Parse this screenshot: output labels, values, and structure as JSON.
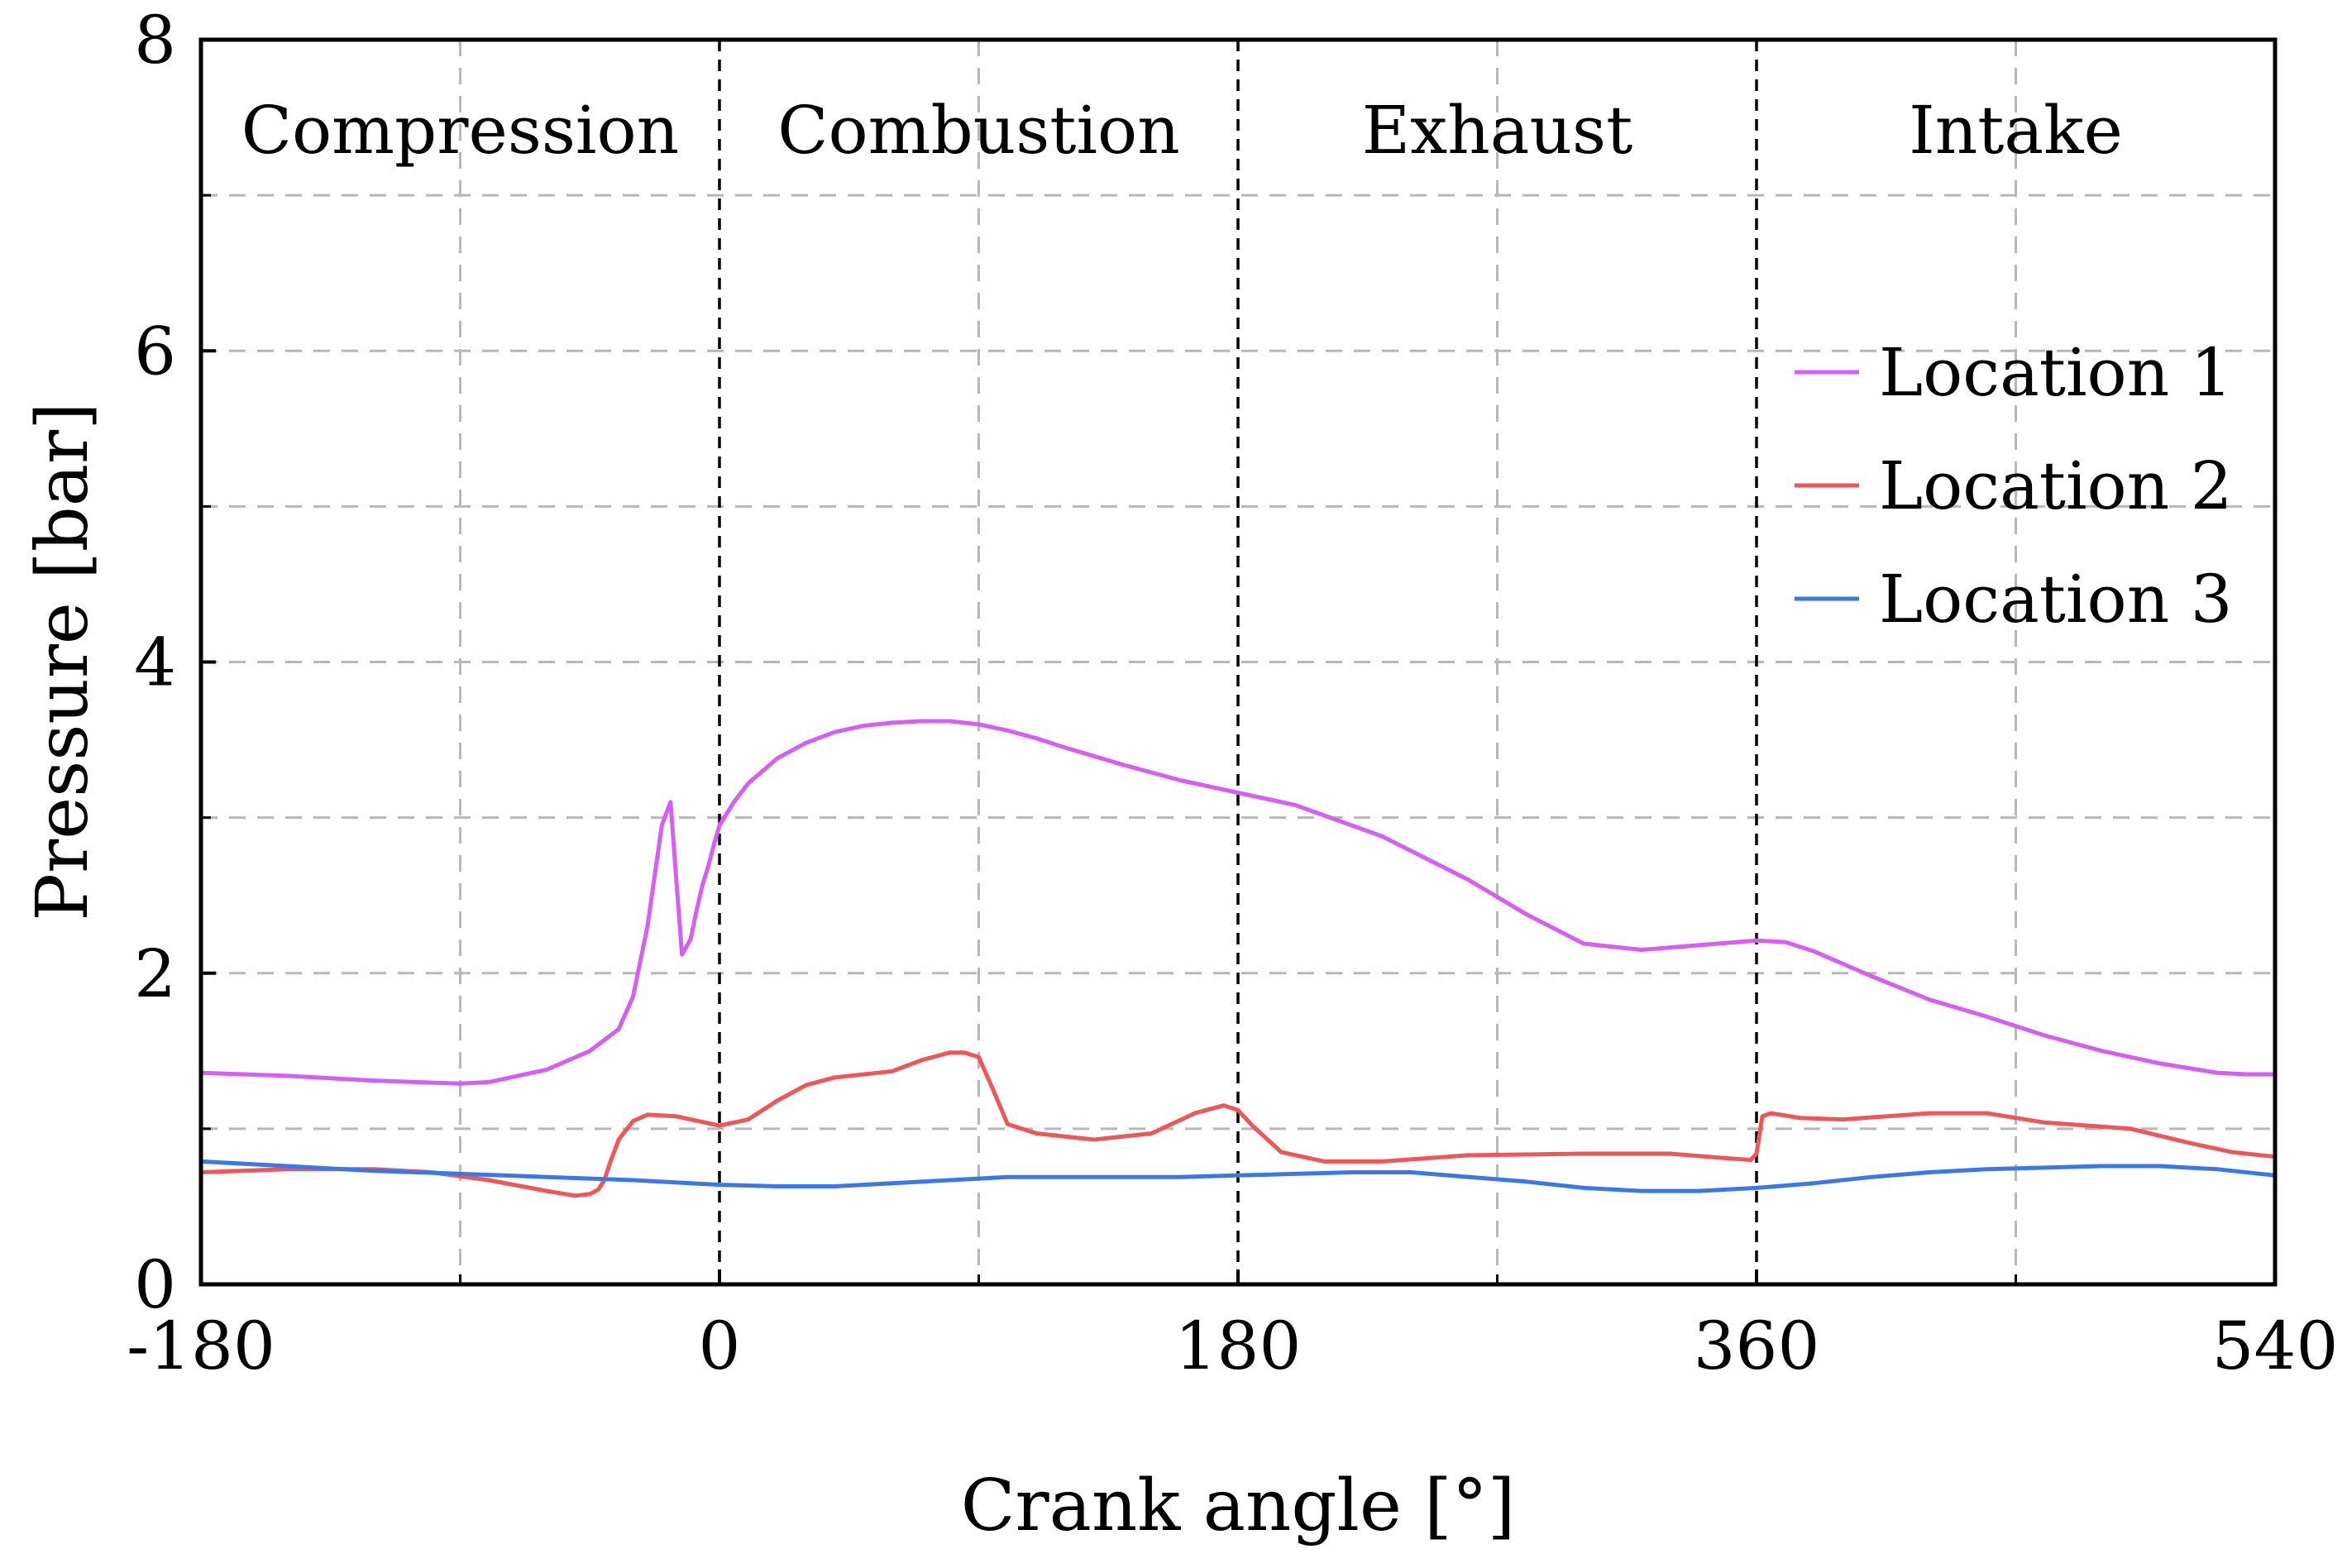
{
  "chart_data": {
    "type": "line",
    "title": "",
    "xlabel": "Crank angle [°]",
    "ylabel": "Pressure [bar]",
    "xlim": [
      -180,
      540
    ],
    "ylim": [
      0,
      8
    ],
    "grid": true,
    "legend_position": "right",
    "x_ticks": [
      {
        "value": -180,
        "label": "-180"
      },
      {
        "value": 0,
        "label": "0"
      },
      {
        "value": 180,
        "label": "180"
      },
      {
        "value": 360,
        "label": "360"
      },
      {
        "value": 540,
        "label": "540"
      }
    ],
    "y_ticks": [
      {
        "value": 0,
        "label": "0"
      },
      {
        "value": 2,
        "label": "2"
      },
      {
        "value": 4,
        "label": "4"
      },
      {
        "value": 6,
        "label": "6"
      },
      {
        "value": 8,
        "label": "8"
      }
    ],
    "x_minor_grid": [
      -90,
      90,
      270,
      450
    ],
    "y_minor_grid": [
      1,
      3,
      5,
      7
    ],
    "phase_dividers": [
      0,
      180,
      360
    ],
    "phases": [
      {
        "name": "Compression",
        "center": -90
      },
      {
        "name": "Combustion",
        "center": 90
      },
      {
        "name": "Exhaust",
        "center": 270
      },
      {
        "name": "Intake",
        "center": 450
      }
    ],
    "series": [
      {
        "name": "Location 1",
        "color": "#d65df5",
        "x": [
          -180,
          -150,
          -120,
          -90,
          -80,
          -60,
          -45,
          -35,
          -30,
          -25,
          -20,
          -17,
          -15,
          -13,
          -10,
          -8,
          -6,
          -4,
          -2,
          0,
          5,
          10,
          20,
          30,
          40,
          50,
          60,
          70,
          80,
          90,
          100,
          110,
          120,
          140,
          160,
          180,
          200,
          230,
          260,
          280,
          300,
          320,
          340,
          360,
          370,
          380,
          400,
          420,
          440,
          460,
          480,
          500,
          520,
          530,
          540
        ],
        "y": [
          1.36,
          1.34,
          1.31,
          1.29,
          1.3,
          1.38,
          1.5,
          1.64,
          1.85,
          2.3,
          2.95,
          3.1,
          2.6,
          2.12,
          2.22,
          2.4,
          2.56,
          2.68,
          2.82,
          2.95,
          3.1,
          3.22,
          3.38,
          3.48,
          3.55,
          3.59,
          3.61,
          3.62,
          3.62,
          3.6,
          3.56,
          3.51,
          3.45,
          3.34,
          3.24,
          3.16,
          3.08,
          2.88,
          2.6,
          2.38,
          2.19,
          2.15,
          2.18,
          2.21,
          2.2,
          2.14,
          1.98,
          1.83,
          1.72,
          1.6,
          1.5,
          1.42,
          1.36,
          1.35,
          1.35
        ]
      },
      {
        "name": "Location 2",
        "color": "#f05656",
        "x": [
          -180,
          -150,
          -120,
          -100,
          -80,
          -60,
          -50,
          -45,
          -42,
          -40,
          -38,
          -35,
          -30,
          -25,
          -15,
          -5,
          0,
          10,
          20,
          30,
          40,
          60,
          70,
          80,
          85,
          90,
          95,
          100,
          110,
          130,
          150,
          165,
          175,
          180,
          185,
          195,
          210,
          230,
          260,
          300,
          330,
          350,
          358,
          360,
          362,
          365,
          375,
          390,
          420,
          440,
          460,
          490,
          510,
          525,
          540
        ],
        "y": [
          0.72,
          0.74,
          0.74,
          0.72,
          0.67,
          0.6,
          0.57,
          0.58,
          0.61,
          0.67,
          0.78,
          0.93,
          1.05,
          1.09,
          1.08,
          1.04,
          1.02,
          1.06,
          1.18,
          1.28,
          1.33,
          1.37,
          1.44,
          1.49,
          1.49,
          1.46,
          1.25,
          1.03,
          0.97,
          0.93,
          0.97,
          1.1,
          1.15,
          1.12,
          1.02,
          0.85,
          0.79,
          0.79,
          0.83,
          0.84,
          0.84,
          0.81,
          0.8,
          0.84,
          1.08,
          1.1,
          1.07,
          1.06,
          1.1,
          1.1,
          1.04,
          1.0,
          0.91,
          0.85,
          0.82
        ]
      },
      {
        "name": "Location 3",
        "color": "#3a78ea",
        "x": [
          -180,
          -150,
          -120,
          -90,
          -60,
          -30,
          0,
          20,
          40,
          60,
          80,
          100,
          120,
          140,
          160,
          180,
          200,
          220,
          240,
          260,
          280,
          300,
          320,
          340,
          360,
          380,
          400,
          420,
          440,
          460,
          480,
          500,
          520,
          540
        ],
        "y": [
          0.79,
          0.76,
          0.73,
          0.71,
          0.69,
          0.67,
          0.64,
          0.63,
          0.63,
          0.65,
          0.67,
          0.69,
          0.69,
          0.69,
          0.69,
          0.7,
          0.71,
          0.72,
          0.72,
          0.69,
          0.66,
          0.62,
          0.6,
          0.6,
          0.62,
          0.65,
          0.69,
          0.72,
          0.74,
          0.75,
          0.76,
          0.76,
          0.74,
          0.7
        ]
      }
    ]
  }
}
